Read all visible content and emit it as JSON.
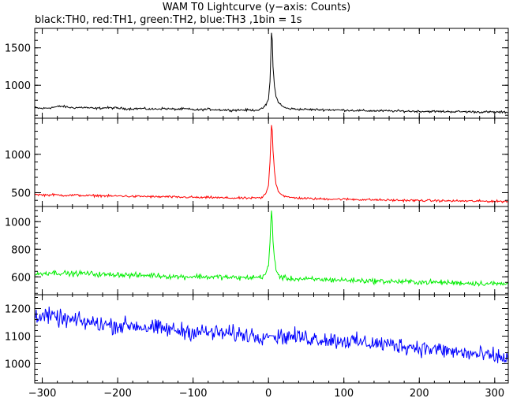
{
  "title": "WAM T0 Lightcurve (y−axis: Counts)",
  "subtitle": "black:TH0, red:TH1, green:TH2, blue:TH3 ,1bin = 1s",
  "chart_data": {
    "type": "line",
    "x_range": [
      -310,
      318
    ],
    "x_ticks": [
      -300,
      -200,
      -100,
      0,
      100,
      200,
      300
    ],
    "x_tick_labels": [
      "−300",
      "−200",
      "−100",
      "0",
      "100",
      "200",
      "300"
    ],
    "series": [
      {
        "name": "TH0",
        "color": "#000000",
        "ylim": [
          560,
          1760
        ],
        "y_ticks": [
          1000,
          1500
        ],
        "points": [
          [
            -310,
            700
          ],
          [
            -300,
            690
          ],
          [
            -290,
            700
          ],
          [
            -275,
            720
          ],
          [
            -260,
            700
          ],
          [
            -245,
            705
          ],
          [
            -230,
            690
          ],
          [
            -215,
            700
          ],
          [
            -200,
            695
          ],
          [
            -185,
            685
          ],
          [
            -170,
            690
          ],
          [
            -155,
            680
          ],
          [
            -140,
            690
          ],
          [
            -125,
            680
          ],
          [
            -110,
            685
          ],
          [
            -95,
            670
          ],
          [
            -80,
            680
          ],
          [
            -65,
            672
          ],
          [
            -50,
            668
          ],
          [
            -35,
            670
          ],
          [
            -20,
            668
          ],
          [
            -10,
            675
          ],
          [
            -3,
            740
          ],
          [
            0,
            820
          ],
          [
            2,
            1050
          ],
          [
            3,
            1350
          ],
          [
            4,
            1700
          ],
          [
            5,
            1600
          ],
          [
            6,
            1250
          ],
          [
            8,
            980
          ],
          [
            10,
            850
          ],
          [
            13,
            780
          ],
          [
            18,
            720
          ],
          [
            25,
            690
          ],
          [
            40,
            680
          ],
          [
            60,
            675
          ],
          [
            80,
            672
          ],
          [
            100,
            668
          ],
          [
            125,
            660
          ],
          [
            150,
            658
          ],
          [
            175,
            655
          ],
          [
            200,
            652
          ],
          [
            225,
            650
          ],
          [
            250,
            648
          ],
          [
            275,
            645
          ],
          [
            300,
            642
          ],
          [
            318,
            640
          ]
        ]
      },
      {
        "name": "TH1",
        "color": "#ff0000",
        "ylim": [
          320,
          1470
        ],
        "y_ticks": [
          500,
          1000
        ],
        "points": [
          [
            -310,
            480
          ],
          [
            -300,
            470
          ],
          [
            -285,
            472
          ],
          [
            -270,
            465
          ],
          [
            -255,
            468
          ],
          [
            -240,
            460
          ],
          [
            -225,
            462
          ],
          [
            -210,
            455
          ],
          [
            -195,
            458
          ],
          [
            -180,
            450
          ],
          [
            -165,
            452
          ],
          [
            -150,
            445
          ],
          [
            -135,
            448
          ],
          [
            -120,
            440
          ],
          [
            -105,
            442
          ],
          [
            -90,
            435
          ],
          [
            -75,
            438
          ],
          [
            -60,
            432
          ],
          [
            -45,
            430
          ],
          [
            -30,
            428
          ],
          [
            -15,
            430
          ],
          [
            -8,
            435
          ],
          [
            -3,
            500
          ],
          [
            0,
            600
          ],
          [
            2,
            900
          ],
          [
            3,
            1150
          ],
          [
            4,
            1380
          ],
          [
            5,
            1300
          ],
          [
            6,
            1050
          ],
          [
            8,
            780
          ],
          [
            10,
            620
          ],
          [
            13,
            520
          ],
          [
            18,
            470
          ],
          [
            25,
            440
          ],
          [
            40,
            430
          ],
          [
            60,
            420
          ],
          [
            80,
            418
          ],
          [
            100,
            415
          ],
          [
            125,
            410
          ],
          [
            150,
            405
          ],
          [
            175,
            400
          ],
          [
            200,
            398
          ],
          [
            225,
            395
          ],
          [
            250,
            392
          ],
          [
            275,
            390
          ],
          [
            300,
            388
          ],
          [
            318,
            386
          ]
        ]
      },
      {
        "name": "TH2",
        "color": "#00ee00",
        "ylim": [
          470,
          1110
        ],
        "y_ticks": [
          600,
          800,
          1000
        ],
        "points": [
          [
            -310,
            615
          ],
          [
            -300,
            625
          ],
          [
            -290,
            630
          ],
          [
            -275,
            628
          ],
          [
            -260,
            622
          ],
          [
            -245,
            626
          ],
          [
            -230,
            620
          ],
          [
            -215,
            615
          ],
          [
            -200,
            618
          ],
          [
            -185,
            612
          ],
          [
            -170,
            610
          ],
          [
            -155,
            612
          ],
          [
            -140,
            606
          ],
          [
            -125,
            602
          ],
          [
            -110,
            600
          ],
          [
            -95,
            603
          ],
          [
            -80,
            598
          ],
          [
            -65,
            600
          ],
          [
            -50,
            595
          ],
          [
            -35,
            592
          ],
          [
            -20,
            596
          ],
          [
            -10,
            598
          ],
          [
            -4,
            620
          ],
          [
            0,
            680
          ],
          [
            2,
            850
          ],
          [
            3,
            980
          ],
          [
            4,
            1080
          ],
          [
            5,
            1000
          ],
          [
            6,
            860
          ],
          [
            8,
            720
          ],
          [
            11,
            640
          ],
          [
            15,
            600
          ],
          [
            22,
            590
          ],
          [
            35,
            585
          ],
          [
            55,
            582
          ],
          [
            75,
            580
          ],
          [
            100,
            576
          ],
          [
            125,
            572
          ],
          [
            150,
            568
          ],
          [
            175,
            565
          ],
          [
            200,
            562
          ],
          [
            225,
            560
          ],
          [
            250,
            556
          ],
          [
            275,
            553
          ],
          [
            300,
            550
          ],
          [
            318,
            548
          ]
        ]
      },
      {
        "name": "TH3",
        "color": "#0000ff",
        "ylim": [
          930,
          1250
        ],
        "y_ticks": [
          1000,
          1100,
          1200
        ],
        "points": [
          [
            -310,
            1180
          ],
          [
            -300,
            1175
          ],
          [
            -285,
            1168
          ],
          [
            -270,
            1160
          ],
          [
            -255,
            1155
          ],
          [
            -240,
            1150
          ],
          [
            -225,
            1145
          ],
          [
            -210,
            1140
          ],
          [
            -195,
            1138
          ],
          [
            -180,
            1140
          ],
          [
            -165,
            1132
          ],
          [
            -150,
            1128
          ],
          [
            -135,
            1125
          ],
          [
            -120,
            1120
          ],
          [
            -105,
            1118
          ],
          [
            -90,
            1115
          ],
          [
            -75,
            1112
          ],
          [
            -60,
            1110
          ],
          [
            -45,
            1108
          ],
          [
            -30,
            1105
          ],
          [
            -15,
            1103
          ],
          [
            0,
            1102
          ],
          [
            15,
            1100
          ],
          [
            30,
            1098
          ],
          [
            45,
            1095
          ],
          [
            60,
            1092
          ],
          [
            75,
            1088
          ],
          [
            90,
            1085
          ],
          [
            105,
            1082
          ],
          [
            120,
            1078
          ],
          [
            135,
            1075
          ],
          [
            150,
            1072
          ],
          [
            165,
            1068
          ],
          [
            180,
            1065
          ],
          [
            195,
            1060
          ],
          [
            210,
            1055
          ],
          [
            225,
            1050
          ],
          [
            240,
            1045
          ],
          [
            255,
            1040
          ],
          [
            270,
            1035
          ],
          [
            285,
            1030
          ],
          [
            300,
            1025
          ],
          [
            318,
            1020
          ]
        ]
      }
    ],
    "grid": false,
    "legend": "none"
  }
}
